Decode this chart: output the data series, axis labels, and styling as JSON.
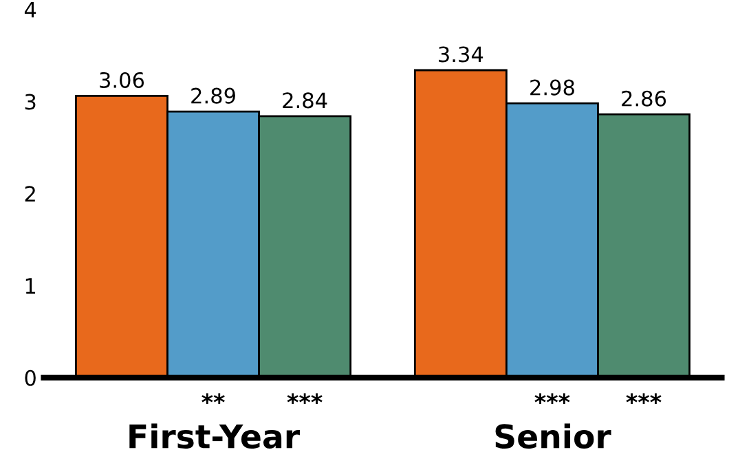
{
  "chart_data": {
    "type": "bar",
    "categories": [
      "First-Year",
      "Senior"
    ],
    "series": [
      {
        "color": "#e8691c",
        "values": [
          3.06,
          3.34
        ]
      },
      {
        "color": "#539cc9",
        "values": [
          2.89,
          2.98
        ]
      },
      {
        "color": "#4f8b6f",
        "values": [
          2.84,
          2.86
        ]
      }
    ],
    "ylim": [
      0,
      4
    ],
    "yticks": [
      0,
      1,
      2,
      3,
      4
    ],
    "grid": false,
    "legend": false,
    "data_labels": true,
    "annotations": [
      "**",
      "***",
      "***",
      "***"
    ]
  }
}
